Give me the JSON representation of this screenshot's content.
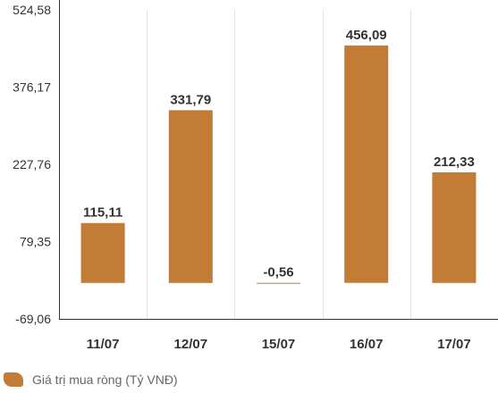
{
  "chart_data": {
    "type": "bar",
    "categories": [
      "11/07",
      "12/07",
      "15/07",
      "16/07",
      "17/07"
    ],
    "series": [
      {
        "name": "Giá trị mua ròng (Tỷ VNĐ)",
        "values": [
          115.11,
          331.79,
          -0.56,
          456.09,
          212.33
        ],
        "value_labels": [
          "115,11",
          "331,79",
          "-0,56",
          "456,09",
          "212,33"
        ]
      }
    ],
    "y_ticks": [
      -69.06,
      79.35,
      227.76,
      376.17,
      524.58
    ],
    "y_tick_labels": [
      "-69,06",
      "79,35",
      "227,76",
      "376,17",
      "524,58"
    ],
    "ylim": [
      -69.06,
      524.58
    ],
    "grid": "vertical",
    "legend_position": "bottom-left",
    "title": "",
    "xlabel": "",
    "ylabel": ""
  },
  "colors": {
    "bar": "#c27c35",
    "axis": "#333333",
    "grid": "#e4e4e4",
    "text": "#333333",
    "legend_text": "#666666"
  },
  "legend": {
    "label": "Giá trị mua ròng (Tỷ VNĐ)"
  }
}
